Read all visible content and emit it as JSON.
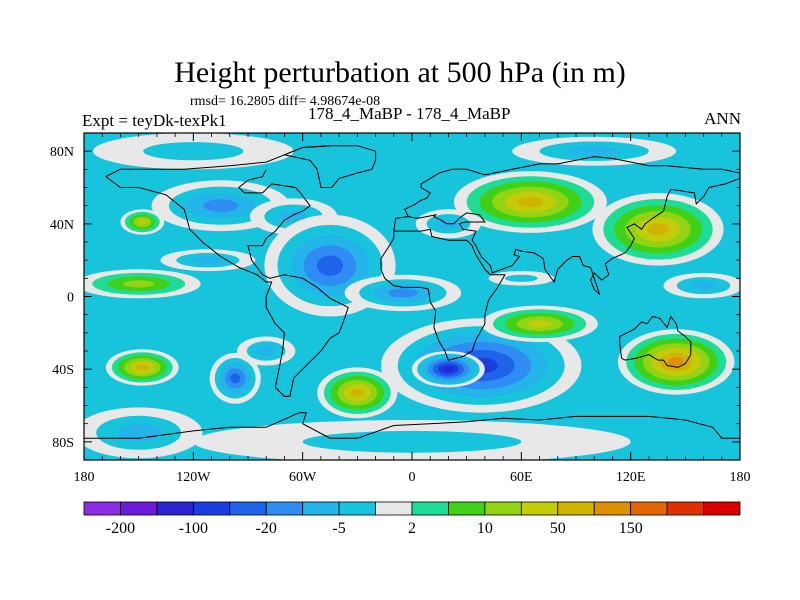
{
  "chart_data": {
    "type": "heatmap",
    "title": "Height perturbation at 500 hPa (in m)",
    "stats_line": "rmsd= 16.2805 diff= 4.98674e-08",
    "left_label": "Expt = teyDk-texPk1",
    "center_label": "178_4_MaBP - 178_4_MaBP",
    "right_label": "ANN",
    "x_ticks": [
      "180",
      "120W",
      "60W",
      "0",
      "60E",
      "120E",
      "180"
    ],
    "x_values": [
      -180,
      -120,
      -60,
      0,
      60,
      120,
      180
    ],
    "y_ticks": [
      "80N",
      "40N",
      "0",
      "40S",
      "80S"
    ],
    "y_values": [
      80,
      40,
      0,
      -40,
      -80
    ],
    "xlim": [
      -180,
      180
    ],
    "ylim": [
      -90,
      90
    ],
    "colorbar": {
      "labels": [
        "-200",
        "-100",
        "-20",
        "-5",
        "2",
        "10",
        "50",
        "150"
      ],
      "colors": [
        "#8b2be2",
        "#6a1ad8",
        "#2a24cc",
        "#1b3de0",
        "#1f63ea",
        "#2f8cf2",
        "#24b4ea",
        "#18c4dc",
        "#e8e8e8",
        "#1edc96",
        "#40d018",
        "#92d414",
        "#c4cc0a",
        "#d0b404",
        "#dc9008",
        "#e26606",
        "#de3004",
        "#d80000"
      ]
    },
    "field_blobs": [
      {
        "lon": -105,
        "lat": 50,
        "rx": 38,
        "ry": 14,
        "level": 5
      },
      {
        "lon": -65,
        "lat": 44,
        "rx": 24,
        "ry": 10,
        "level": 6
      },
      {
        "lon": -148,
        "lat": 41,
        "rx": 12,
        "ry": 7,
        "level": 12
      },
      {
        "lon": -150,
        "lat": 7,
        "rx": 34,
        "ry": 8,
        "level": 11
      },
      {
        "lon": -112,
        "lat": 20,
        "rx": 26,
        "ry": 6,
        "level": 6
      },
      {
        "lon": -45,
        "lat": 17,
        "rx": 36,
        "ry": 28,
        "level": 4
      },
      {
        "lon": -5,
        "lat": 2,
        "rx": 32,
        "ry": 10,
        "level": 5
      },
      {
        "lon": 20,
        "lat": 40,
        "rx": 18,
        "ry": 8,
        "level": 6
      },
      {
        "lon": 38,
        "lat": -38,
        "rx": 55,
        "ry": 26,
        "level": 3
      },
      {
        "lon": 20,
        "lat": -40,
        "rx": 20,
        "ry": 10,
        "level": 2
      },
      {
        "lon": -148,
        "lat": -39,
        "rx": 20,
        "ry": 10,
        "level": 13
      },
      {
        "lon": -97,
        "lat": -45,
        "rx": 14,
        "ry": 14,
        "level": 4
      },
      {
        "lon": -80,
        "lat": -30,
        "rx": 16,
        "ry": 8,
        "level": 6
      },
      {
        "lon": -30,
        "lat": -53,
        "rx": 22,
        "ry": 14,
        "level": 13
      },
      {
        "lon": 65,
        "lat": 52,
        "rx": 42,
        "ry": 17,
        "level": 13
      },
      {
        "lon": 135,
        "lat": 37,
        "rx": 36,
        "ry": 20,
        "level": 13
      },
      {
        "lon": 70,
        "lat": -15,
        "rx": 32,
        "ry": 10,
        "level": 12
      },
      {
        "lon": 145,
        "lat": -36,
        "rx": 32,
        "ry": 18,
        "level": 14
      },
      {
        "lon": 160,
        "lat": 6,
        "rx": 22,
        "ry": 7,
        "level": 6
      },
      {
        "lon": 60,
        "lat": 10,
        "rx": 18,
        "ry": 4,
        "level": 7
      },
      {
        "lon": -120,
        "lat": 80,
        "rx": 55,
        "ry": 10,
        "level": 7
      },
      {
        "lon": 100,
        "lat": 80,
        "rx": 45,
        "ry": 8,
        "level": 6
      },
      {
        "lon": 0,
        "lat": -80,
        "rx": 120,
        "ry": 12,
        "level": 7
      },
      {
        "lon": -150,
        "lat": -75,
        "rx": 35,
        "ry": 14,
        "level": 6
      }
    ],
    "coastlines": [
      [
        [
          -168,
          66
        ],
        [
          -160,
          70
        ],
        [
          -140,
          70
        ],
        [
          -125,
          70
        ],
        [
          -100,
          72
        ],
        [
          -80,
          74
        ],
        [
          -70,
          78
        ],
        [
          -60,
          82
        ],
        [
          -45,
          83
        ]
      ],
      [
        [
          -168,
          66
        ],
        [
          -160,
          60
        ],
        [
          -150,
          60
        ],
        [
          -135,
          56
        ],
        [
          -125,
          48
        ],
        [
          -122,
          37
        ],
        [
          -115,
          30
        ],
        [
          -105,
          22
        ],
        [
          -95,
          16
        ],
        [
          -85,
          12
        ],
        [
          -80,
          8
        ],
        [
          -77,
          8
        ],
        [
          -80,
          0
        ],
        [
          -80,
          -6
        ],
        [
          -75,
          -15
        ],
        [
          -70,
          -20
        ],
        [
          -71,
          -30
        ],
        [
          -73,
          -40
        ],
        [
          -75,
          -50
        ],
        [
          -70,
          -55
        ],
        [
          -67,
          -55
        ],
        [
          -65,
          -45
        ],
        [
          -58,
          -38
        ],
        [
          -50,
          -30
        ],
        [
          -45,
          -23
        ],
        [
          -40,
          -20
        ],
        [
          -37,
          -12
        ],
        [
          -35,
          -6
        ],
        [
          -45,
          -1
        ],
        [
          -52,
          5
        ],
        [
          -60,
          10
        ],
        [
          -70,
          12
        ],
        [
          -78,
          10
        ],
        [
          -82,
          12
        ],
        [
          -85,
          16
        ],
        [
          -88,
          20
        ],
        [
          -90,
          28
        ],
        [
          -82,
          28
        ],
        [
          -80,
          32
        ],
        [
          -75,
          36
        ],
        [
          -70,
          42
        ],
        [
          -65,
          45
        ],
        [
          -60,
          47
        ],
        [
          -56,
          50
        ],
        [
          -62,
          58
        ],
        [
          -64,
          60
        ],
        [
          -77,
          62
        ],
        [
          -82,
          57
        ],
        [
          -92,
          57
        ],
        [
          -95,
          60
        ],
        [
          -90,
          64
        ],
        [
          -82,
          66
        ],
        [
          -80,
          70
        ]
      ],
      [
        [
          -10,
          36
        ],
        [
          -5,
          36
        ],
        [
          5,
          36
        ],
        [
          10,
          37
        ],
        [
          11,
          33
        ],
        [
          20,
          31
        ],
        [
          30,
          31
        ],
        [
          33,
          28
        ],
        [
          35,
          23
        ],
        [
          40,
          15
        ],
        [
          43,
          12
        ],
        [
          51,
          12
        ],
        [
          47,
          5
        ],
        [
          42,
          -2
        ],
        [
          40,
          -10
        ],
        [
          40,
          -15
        ],
        [
          35,
          -24
        ],
        [
          33,
          -30
        ],
        [
          28,
          -33
        ],
        [
          20,
          -35
        ],
        [
          18,
          -30
        ],
        [
          15,
          -25
        ],
        [
          12,
          -17
        ],
        [
          13,
          -8
        ],
        [
          10,
          -3
        ],
        [
          9,
          4
        ],
        [
          5,
          5
        ],
        [
          -5,
          5
        ],
        [
          -10,
          6
        ],
        [
          -15,
          10
        ],
        [
          -17,
          15
        ],
        [
          -17,
          21
        ],
        [
          -13,
          27
        ],
        [
          -10,
          32
        ],
        [
          -10,
          36
        ]
      ],
      [
        [
          -10,
          36
        ],
        [
          -9,
          43
        ],
        [
          -2,
          44
        ],
        [
          -4,
          48
        ],
        [
          2,
          51
        ],
        [
          5,
          53
        ],
        [
          8,
          54
        ],
        [
          10,
          57
        ],
        [
          5,
          60
        ],
        [
          5,
          62
        ],
        [
          15,
          68
        ],
        [
          22,
          70
        ],
        [
          30,
          70
        ],
        [
          40,
          67
        ],
        [
          45,
          68
        ],
        [
          55,
          70
        ],
        [
          70,
          73
        ],
        [
          80,
          73
        ],
        [
          100,
          77
        ],
        [
          110,
          76
        ],
        [
          130,
          72
        ],
        [
          140,
          72
        ],
        [
          160,
          70
        ],
        [
          170,
          70
        ],
        [
          180,
          68
        ]
      ],
      [
        [
          180,
          65
        ],
        [
          172,
          62
        ],
        [
          163,
          60
        ],
        [
          160,
          55
        ],
        [
          156,
          51
        ],
        [
          155,
          57
        ],
        [
          142,
          59
        ],
        [
          140,
          55
        ],
        [
          138,
          47
        ],
        [
          132,
          43
        ],
        [
          128,
          40
        ],
        [
          126,
          37
        ],
        [
          122,
          40
        ],
        [
          118,
          38
        ],
        [
          122,
          32
        ],
        [
          120,
          28
        ],
        [
          117,
          24
        ],
        [
          110,
          21
        ],
        [
          106,
          18
        ],
        [
          108,
          12
        ],
        [
          104,
          9
        ],
        [
          100,
          13
        ],
        [
          98,
          9
        ],
        [
          100,
          4
        ],
        [
          103,
          1
        ],
        [
          98,
          16
        ],
        [
          94,
          17
        ],
        [
          92,
          22
        ],
        [
          88,
          22
        ],
        [
          85,
          20
        ],
        [
          80,
          15
        ],
        [
          78,
          8
        ],
        [
          73,
          15
        ],
        [
          72,
          21
        ],
        [
          67,
          24
        ],
        [
          60,
          25
        ],
        [
          57,
          26
        ],
        [
          56,
          23
        ],
        [
          59,
          22
        ],
        [
          55,
          17
        ],
        [
          44,
          13
        ],
        [
          43,
          17
        ],
        [
          38,
          22
        ],
        [
          35,
          28
        ],
        [
          33,
          31
        ],
        [
          35,
          36
        ],
        [
          28,
          37
        ],
        [
          26,
          40
        ],
        [
          29,
          41
        ],
        [
          40,
          41
        ],
        [
          37,
          45
        ],
        [
          30,
          46
        ],
        [
          27,
          44
        ],
        [
          23,
          40
        ],
        [
          19,
          40
        ],
        [
          16,
          42
        ],
        [
          12,
          44
        ],
        [
          13,
          45
        ],
        [
          8,
          44
        ],
        [
          3,
          43
        ],
        [
          -2,
          44
        ]
      ],
      [
        [
          114,
          -22
        ],
        [
          114,
          -26
        ],
        [
          115,
          -34
        ],
        [
          117,
          -35
        ],
        [
          123,
          -34
        ],
        [
          130,
          -32
        ],
        [
          135,
          -35
        ],
        [
          138,
          -35
        ],
        [
          140,
          -38
        ],
        [
          146,
          -39
        ],
        [
          150,
          -37
        ],
        [
          153,
          -32
        ],
        [
          153,
          -25
        ],
        [
          150,
          -22
        ],
        [
          146,
          -19
        ],
        [
          145,
          -15
        ],
        [
          142,
          -11
        ],
        [
          140,
          -17
        ],
        [
          136,
          -12
        ],
        [
          132,
          -11
        ],
        [
          129,
          -15
        ],
        [
          126,
          -14
        ],
        [
          123,
          -17
        ],
        [
          122,
          -18
        ],
        [
          114,
          -22
        ]
      ],
      [
        [
          -50,
          60
        ],
        [
          -44,
          60
        ],
        [
          -40,
          65
        ],
        [
          -30,
          68
        ],
        [
          -22,
          70
        ],
        [
          -20,
          75
        ],
        [
          -20,
          80
        ],
        [
          -30,
          83
        ],
        [
          -45,
          83
        ],
        [
          -60,
          82
        ],
        [
          -70,
          78
        ],
        [
          -56,
          75
        ],
        [
          -52,
          70
        ],
        [
          -50,
          60
        ]
      ],
      [
        [
          -180,
          -78
        ],
        [
          -150,
          -78
        ],
        [
          -120,
          -74
        ],
        [
          -100,
          -72
        ],
        [
          -80,
          -72
        ],
        [
          -62,
          -64
        ],
        [
          -58,
          -64
        ],
        [
          -60,
          -70
        ],
        [
          -45,
          -78
        ],
        [
          -30,
          -78
        ],
        [
          -10,
          -71
        ],
        [
          10,
          -70
        ],
        [
          30,
          -69
        ],
        [
          50,
          -67
        ],
        [
          70,
          -68
        ],
        [
          90,
          -66
        ],
        [
          110,
          -66
        ],
        [
          130,
          -66
        ],
        [
          150,
          -68
        ],
        [
          165,
          -72
        ],
        [
          170,
          -78
        ],
        [
          180,
          -78
        ]
      ]
    ]
  }
}
